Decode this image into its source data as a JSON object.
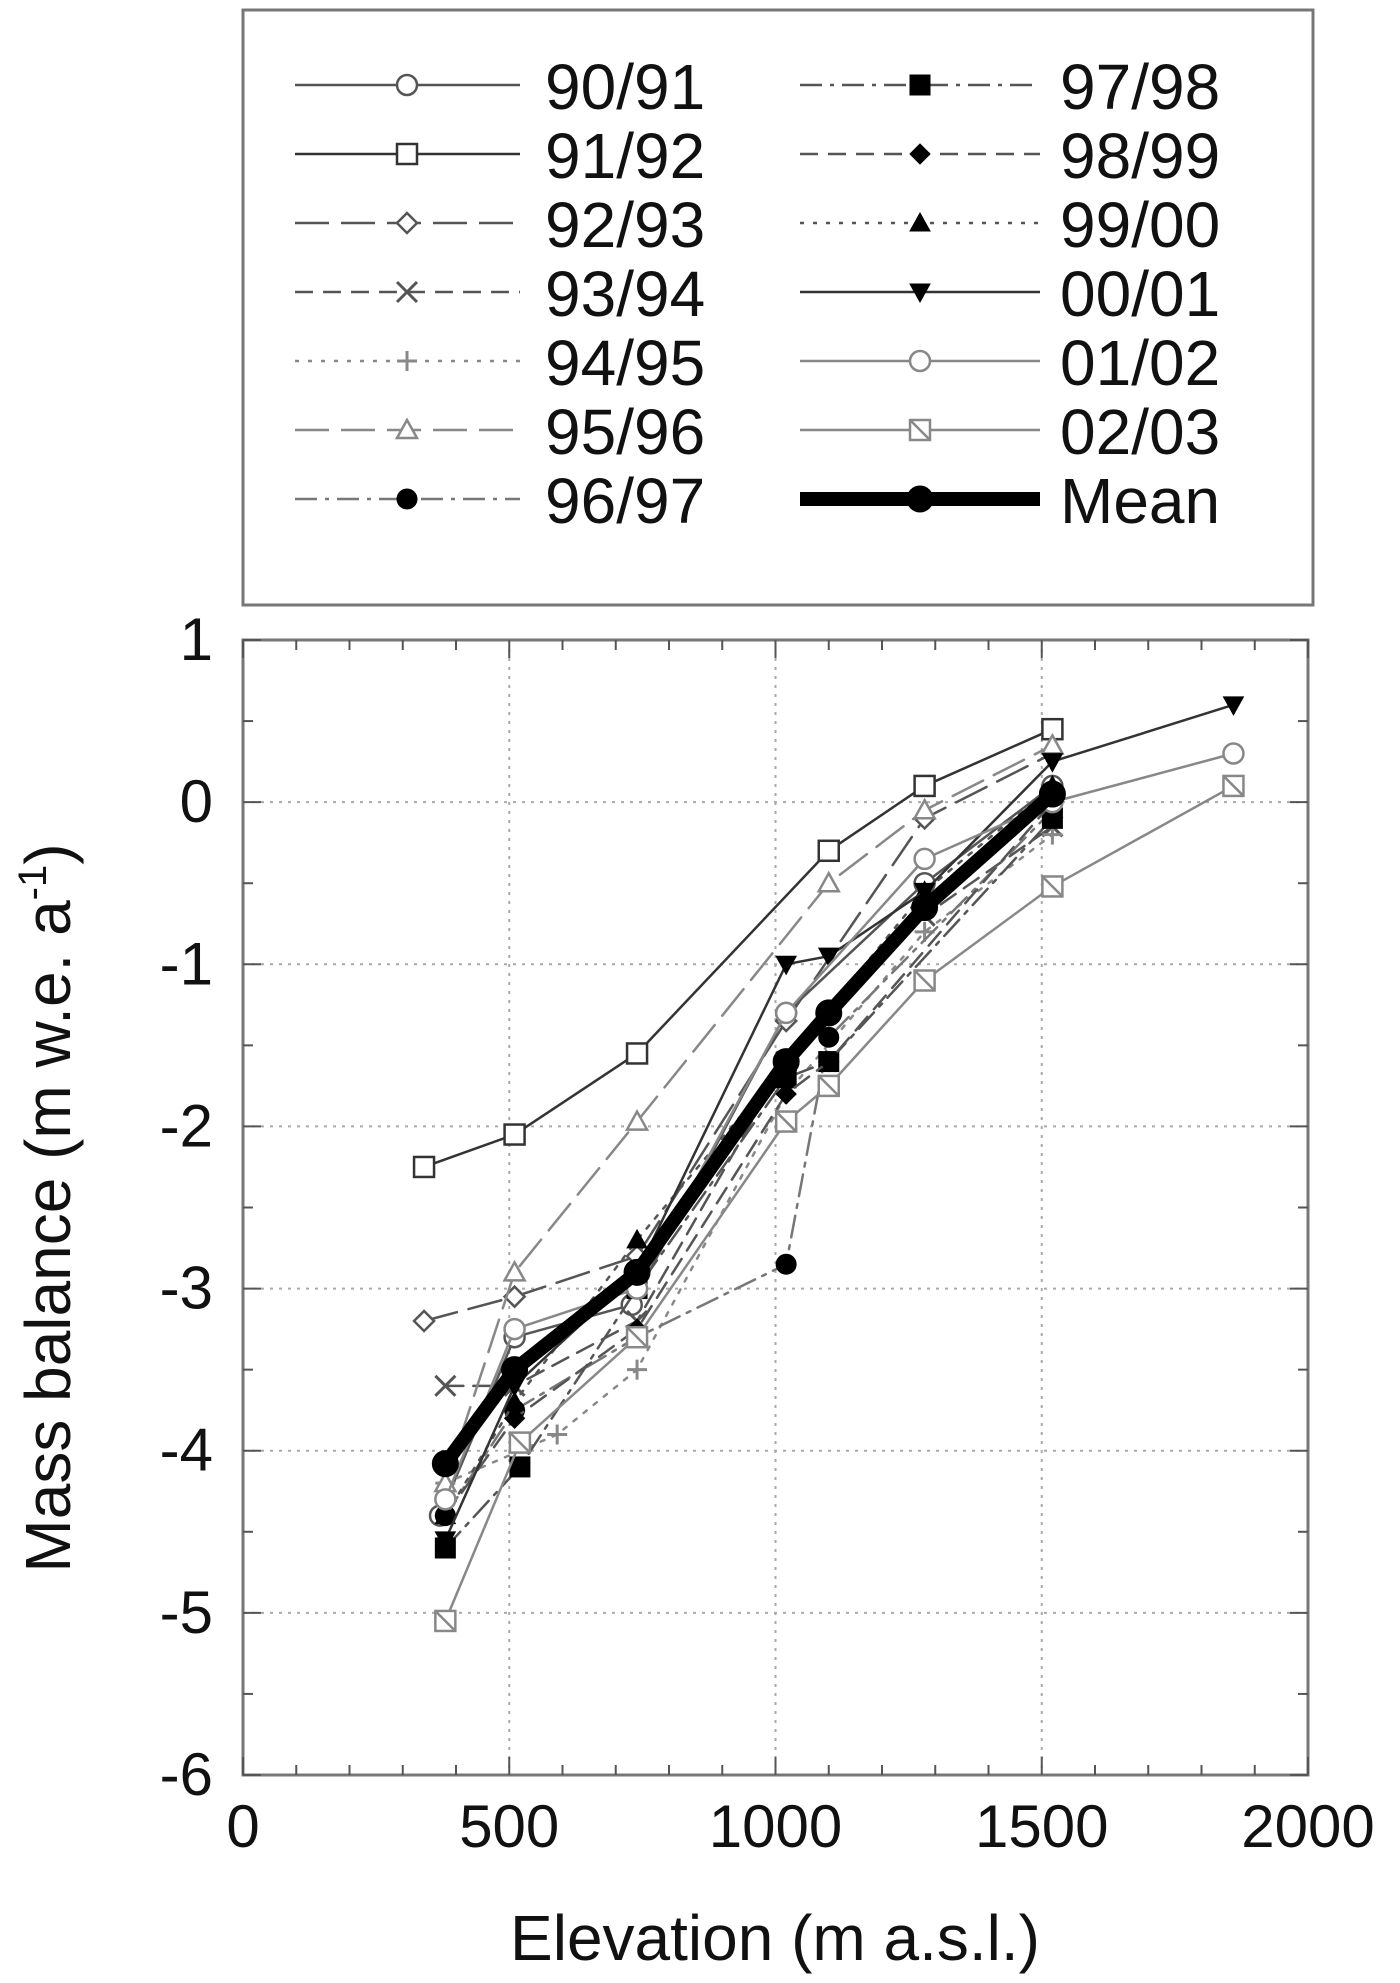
{
  "chart_data": {
    "type": "line",
    "xlabel": "Elevation (m a.s.l.)",
    "ylabel": "Mass balance (m w.e. a",
    "ylabel_superscript": "-1",
    "ylabel_close": ")",
    "xlim": [
      0,
      2000
    ],
    "ylim": [
      -6,
      1
    ],
    "x_ticks": [
      0,
      500,
      1000,
      1500,
      2000
    ],
    "x_tick_labels": [
      "0",
      "500",
      "1000",
      "1500",
      "2000"
    ],
    "y_ticks": [
      1,
      0,
      -1,
      -2,
      -3,
      -4,
      -5,
      -6
    ],
    "y_tick_labels": [
      "1",
      "0",
      "-1",
      "-2",
      "-3",
      "-4",
      "-5",
      "-6"
    ],
    "grid": true,
    "legend_position": "top",
    "series": [
      {
        "name": "90/91",
        "marker": "circle-open",
        "dash": "solid",
        "color": "#555555",
        "points": [
          [
            370,
            -4.4
          ],
          [
            510,
            -3.3
          ],
          [
            730,
            -3.1
          ],
          [
            1020,
            -1.3
          ],
          [
            1280,
            -0.5
          ],
          [
            1520,
            0.1
          ]
        ]
      },
      {
        "name": "91/92",
        "marker": "square-open",
        "dash": "solid",
        "color": "#333333",
        "points": [
          [
            340,
            -2.25
          ],
          [
            510,
            -2.05
          ],
          [
            740,
            -1.55
          ],
          [
            1100,
            -0.3
          ],
          [
            1280,
            0.1
          ],
          [
            1520,
            0.45
          ]
        ]
      },
      {
        "name": "92/93",
        "marker": "diamond-open",
        "dash": "longdash",
        "color": "#555555",
        "points": [
          [
            340,
            -3.2
          ],
          [
            510,
            -3.05
          ],
          [
            740,
            -2.8
          ],
          [
            1020,
            -1.35
          ],
          [
            1280,
            -0.1
          ],
          [
            1520,
            0.3
          ]
        ]
      },
      {
        "name": "93/94",
        "marker": "x",
        "dash": "dash",
        "color": "#555555",
        "points": [
          [
            380,
            -3.6
          ],
          [
            510,
            -3.6
          ],
          [
            740,
            -3.2
          ],
          [
            1020,
            -1.6
          ],
          [
            1280,
            -0.7
          ],
          [
            1520,
            -0.15
          ]
        ]
      },
      {
        "name": "94/95",
        "marker": "plus",
        "dash": "dot",
        "color": "#888888",
        "points": [
          [
            380,
            -4.2
          ],
          [
            590,
            -3.9
          ],
          [
            740,
            -3.5
          ],
          [
            1020,
            -1.8
          ],
          [
            1280,
            -0.8
          ],
          [
            1520,
            -0.2
          ]
        ]
      },
      {
        "name": "95/96",
        "marker": "triangle-open",
        "dash": "longdash",
        "color": "#888888",
        "points": [
          [
            380,
            -4.2
          ],
          [
            510,
            -2.9
          ],
          [
            740,
            -1.97
          ],
          [
            1100,
            -0.5
          ],
          [
            1280,
            -0.05
          ],
          [
            1520,
            0.35
          ]
        ]
      },
      {
        "name": "96/97",
        "marker": "circle-filled",
        "dash": "dashdot",
        "color": "#777777",
        "points": [
          [
            380,
            -4.4
          ],
          [
            510,
            -3.75
          ],
          [
            740,
            -3.3
          ],
          [
            1020,
            -2.85
          ],
          [
            1100,
            -1.45
          ],
          [
            1520,
            -0.05
          ]
        ]
      },
      {
        "name": "97/98",
        "marker": "square-filled",
        "dash": "dashdot",
        "color": "#555555",
        "points": [
          [
            380,
            -4.6
          ],
          [
            520,
            -4.1
          ],
          [
            740,
            -3.0
          ],
          [
            1020,
            -1.7
          ],
          [
            1100,
            -1.6
          ],
          [
            1520,
            -0.1
          ]
        ]
      },
      {
        "name": "98/99",
        "marker": "diamond-filled",
        "dash": "dash",
        "color": "#555555",
        "points": [
          [
            380,
            -4.4
          ],
          [
            510,
            -3.8
          ],
          [
            740,
            -3.25
          ],
          [
            1020,
            -1.8
          ],
          [
            1100,
            -1.6
          ],
          [
            1520,
            0.0
          ]
        ]
      },
      {
        "name": "99/00",
        "marker": "triangle-filled",
        "dash": "dot",
        "color": "#555555",
        "points": [
          [
            380,
            -4.4
          ],
          [
            510,
            -3.7
          ],
          [
            740,
            -2.7
          ],
          [
            1020,
            -1.6
          ],
          [
            1280,
            -0.55
          ],
          [
            1520,
            0.1
          ]
        ]
      },
      {
        "name": "00/01",
        "marker": "triangle-down-filled",
        "dash": "solid",
        "color": "#333333",
        "points": [
          [
            380,
            -4.55
          ],
          [
            510,
            -3.6
          ],
          [
            740,
            -2.9
          ],
          [
            1020,
            -1.0
          ],
          [
            1100,
            -0.95
          ],
          [
            1280,
            -0.55
          ],
          [
            1520,
            0.25
          ],
          [
            1860,
            0.6
          ]
        ]
      },
      {
        "name": "01/02",
        "marker": "circle-open",
        "dash": "solid",
        "color": "#888888",
        "points": [
          [
            380,
            -4.3
          ],
          [
            510,
            -3.25
          ],
          [
            740,
            -3.0
          ],
          [
            1020,
            -1.3
          ],
          [
            1280,
            -0.35
          ],
          [
            1520,
            0.0
          ],
          [
            1860,
            0.3
          ]
        ]
      },
      {
        "name": "02/03",
        "marker": "square-cross-open",
        "dash": "solid",
        "color": "#888888",
        "points": [
          [
            380,
            -5.05
          ],
          [
            520,
            -3.95
          ],
          [
            740,
            -3.3
          ],
          [
            1020,
            -1.97
          ],
          [
            1100,
            -1.75
          ],
          [
            1280,
            -1.1
          ],
          [
            1520,
            -0.52
          ],
          [
            1860,
            0.1
          ]
        ]
      },
      {
        "name": "Mean",
        "marker": "circle-filled",
        "dash": "solid",
        "color": "#000000",
        "bold": true,
        "points": [
          [
            380,
            -4.08
          ],
          [
            510,
            -3.5
          ],
          [
            740,
            -2.9
          ],
          [
            1020,
            -1.6
          ],
          [
            1100,
            -1.3
          ],
          [
            1280,
            -0.65
          ],
          [
            1520,
            0.05
          ]
        ]
      }
    ]
  }
}
